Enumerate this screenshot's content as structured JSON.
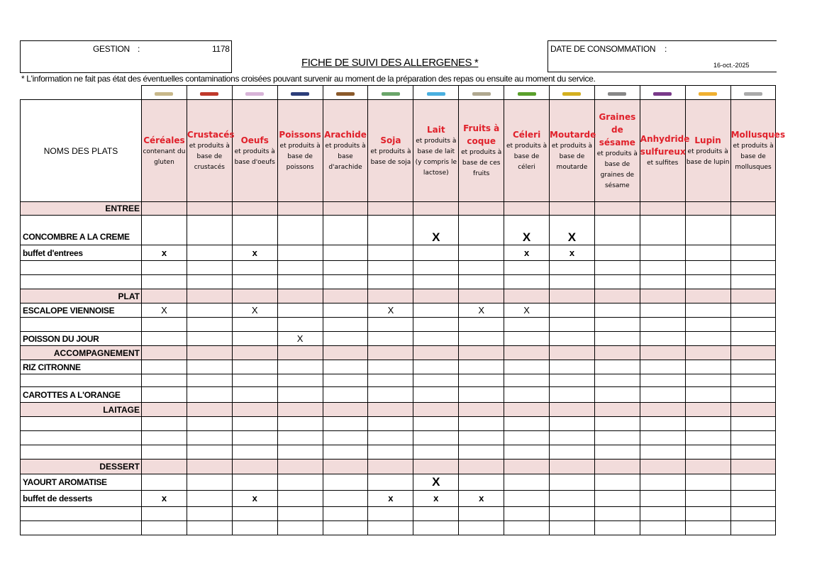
{
  "header": {
    "gestion_label": "GESTION",
    "colon": ":",
    "gestion_value": "1178",
    "title": "FICHE DE SUIVI DES ALLERGENES *",
    "date_label": "DATE DE CONSOMMATION",
    "date_value": "16-oct.-2025"
  },
  "note": "* L'information ne fait pas état des éventuelles contaminations croisées pouvant survenir au moment de la préparation des repas ou ensuite au moment du service.",
  "first_col_header": "NOMS DES PLATS",
  "allergens": [
    {
      "name": "Céréales",
      "desc": "contenant du gluten",
      "color": "#c8b88a"
    },
    {
      "name": "Crustacés",
      "desc": "et produits à base de crustacés",
      "color": "#c0392b"
    },
    {
      "name": "Oeufs",
      "desc": "et produits à base d'oeufs",
      "color": "#d8b4d8"
    },
    {
      "name": "Poissons",
      "desc": "et produits à base de poissons",
      "color": "#2c3e7a"
    },
    {
      "name": "Arachide",
      "desc": "et produits à base d'arachide",
      "color": "#8b5a2b"
    },
    {
      "name": "Soja",
      "desc": "et produits à base de soja",
      "color": "#6aa56a"
    },
    {
      "name": "Lait",
      "desc": "et produits à base de lait (y compris le lactose)",
      "color": "#4ab0e0"
    },
    {
      "name": "Fruits à coque",
      "desc": "et produits à base de ces fruits",
      "color": "#b0a890"
    },
    {
      "name": "Céleri",
      "desc": "et produits à base de céleri",
      "color": "#5aa02c"
    },
    {
      "name": "Moutarde",
      "desc": "et produits à base de moutarde",
      "color": "#d4b020"
    },
    {
      "name": "Graines de sésame",
      "desc": "et produits à base de graines de sésame",
      "color": "#888888"
    },
    {
      "name": "Anhydride sulfureux",
      "desc": "et sulfites",
      "color": "#7a3a8a"
    },
    {
      "name": "Lupin",
      "desc": "et produits à base de lupin",
      "color": "#f0b030"
    },
    {
      "name": "Mollusques",
      "desc": "et produits à base de mollusques",
      "color": "#aaaaaa"
    }
  ],
  "rows": [
    {
      "type": "section",
      "label": "ENTREE"
    },
    {
      "type": "dish",
      "label": "CONCOMBRE A LA CREME",
      "style": "X",
      "marks": [
        "",
        "",
        "",
        "",
        "",
        "",
        "X",
        "",
        "X",
        "X",
        "",
        "",
        "",
        ""
      ]
    },
    {
      "type": "dish",
      "label": "buffet d'entrees",
      "style": "x",
      "marks": [
        "x",
        "",
        "x",
        "",
        "",
        "",
        "",
        "",
        "x",
        "x",
        "",
        "",
        "",
        ""
      ]
    },
    {
      "type": "dish",
      "label": "",
      "marks": []
    },
    {
      "type": "dish",
      "label": "",
      "marks": []
    },
    {
      "type": "section",
      "label": "PLAT"
    },
    {
      "type": "dish",
      "label": "ESCALOPE VIENNOISE",
      "style": "xr",
      "marks": [
        "X",
        "",
        "X",
        "",
        "",
        "X",
        "",
        "X",
        "X",
        "",
        "",
        "",
        "",
        ""
      ]
    },
    {
      "type": "dish",
      "label": "",
      "marks": []
    },
    {
      "type": "dish",
      "label": "POISSON DU JOUR",
      "style": "xr",
      "marks": [
        "",
        "",
        "",
        "X",
        "",
        "",
        "",
        "",
        "",
        "",
        "",
        "",
        "",
        ""
      ]
    },
    {
      "type": "section",
      "label": "ACCOMPAGNEMENT"
    },
    {
      "type": "dish",
      "label": "RIZ CITRONNE",
      "marks": []
    },
    {
      "type": "dish",
      "label": "",
      "marks": []
    },
    {
      "type": "dish",
      "label": "CAROTTES A L'ORANGE",
      "marks": []
    },
    {
      "type": "section",
      "label": "LAITAGE"
    },
    {
      "type": "dish",
      "label": "",
      "marks": []
    },
    {
      "type": "dish",
      "label": "",
      "marks": []
    },
    {
      "type": "dish",
      "label": "",
      "marks": []
    },
    {
      "type": "section",
      "label": "DESSERT"
    },
    {
      "type": "dish",
      "label": "YAOURT AROMATISE",
      "style": "X",
      "marks": [
        "",
        "",
        "",
        "",
        "",
        "",
        "X",
        "",
        "",
        "",
        "",
        "",
        "",
        ""
      ]
    },
    {
      "type": "dish",
      "label": "buffet de desserts",
      "style": "x",
      "marks": [
        "x",
        "",
        "x",
        "",
        "",
        "x",
        "x",
        "x",
        "",
        "",
        "",
        "",
        "",
        ""
      ]
    },
    {
      "type": "dish",
      "label": "",
      "marks": []
    },
    {
      "type": "dish",
      "label": "",
      "marks": []
    }
  ]
}
